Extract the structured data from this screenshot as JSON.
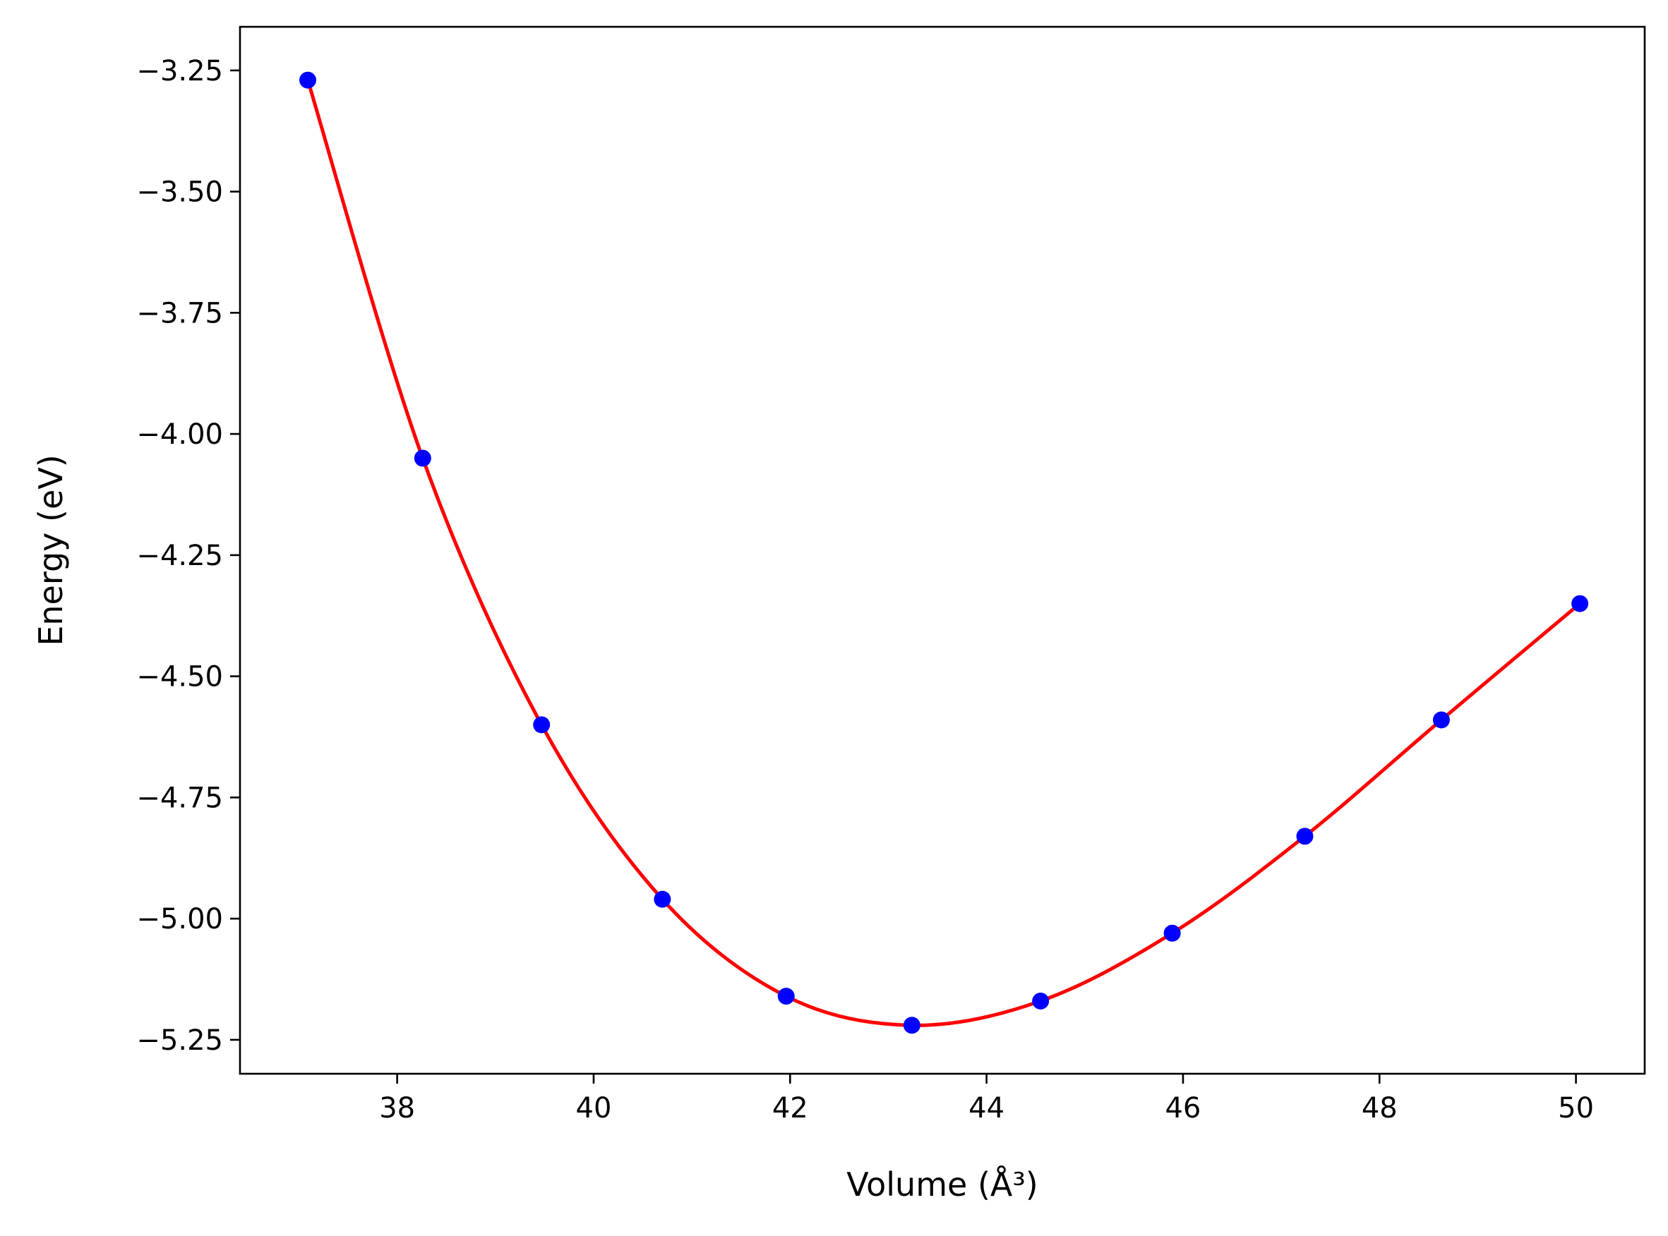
{
  "chart_data": {
    "type": "scatter",
    "xlabel": "Volume (Å³)",
    "ylabel": "Energy (eV)",
    "xlim": [
      36.4,
      50.7
    ],
    "ylim": [
      -5.32,
      -3.16
    ],
    "xticks": [
      38,
      40,
      42,
      44,
      46,
      48,
      50
    ],
    "yticks": [
      -3.25,
      -3.5,
      -3.75,
      -4.0,
      -4.25,
      -4.5,
      -4.75,
      -5.0,
      -5.25
    ],
    "xtick_labels": [
      "38",
      "40",
      "42",
      "44",
      "46",
      "48",
      "50"
    ],
    "ytick_labels": [
      "−3.25",
      "−3.50",
      "−3.75",
      "−4.00",
      "−4.25",
      "−4.50",
      "−4.75",
      "−5.00",
      "−5.25"
    ],
    "grid": false,
    "series": [
      {
        "kind": "points",
        "color": "#0000ff",
        "x": [
          37.09,
          38.26,
          39.47,
          40.7,
          41.96,
          43.24,
          44.55,
          45.89,
          47.24,
          48.63,
          50.04
        ],
        "y": [
          -3.27,
          -4.05,
          -4.6,
          -4.96,
          -5.16,
          -5.22,
          -5.17,
          -5.03,
          -4.83,
          -4.59,
          -4.35
        ]
      },
      {
        "kind": "fit-curve",
        "color": "#ff0000",
        "x": [
          37.09,
          38.26,
          39.47,
          40.7,
          41.96,
          43.24,
          44.55,
          45.89,
          47.24,
          48.63,
          50.04
        ],
        "y": [
          -3.27,
          -4.05,
          -4.6,
          -4.96,
          -5.16,
          -5.22,
          -5.17,
          -5.03,
          -4.83,
          -4.59,
          -4.35
        ]
      }
    ]
  }
}
